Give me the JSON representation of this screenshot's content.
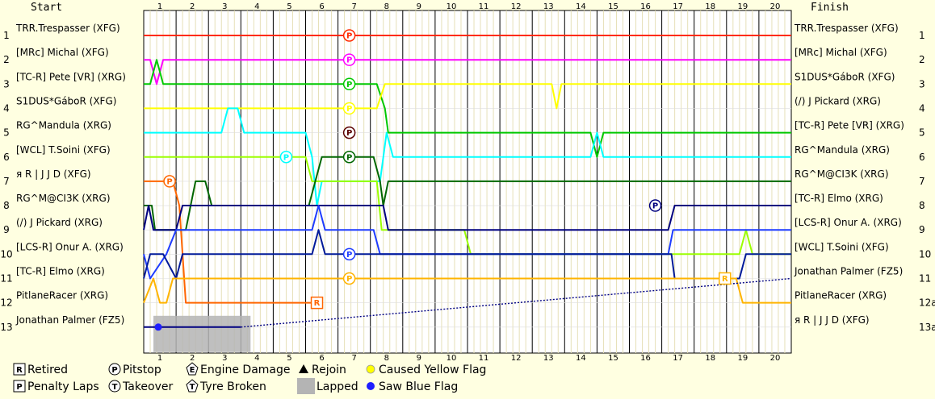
{
  "chart_data": {
    "type": "line",
    "header": {
      "start": "Start",
      "finish": "Finish"
    },
    "laps_top": [
      "1",
      "2",
      "3",
      "4",
      "5",
      "6",
      "7",
      "8",
      "9",
      "10",
      "11",
      "12",
      "13",
      "14",
      "15",
      "16",
      "17",
      "18",
      "19",
      "20"
    ],
    "laps_bottom": [
      "1",
      "2",
      "3",
      "4",
      "5",
      "6",
      "7",
      "8",
      "9",
      "10",
      "11",
      "12",
      "13",
      "14",
      "15",
      "16",
      "17",
      "18",
      "19",
      "20"
    ],
    "positions_left": [
      "1",
      "2",
      "3",
      "4",
      "5",
      "6",
      "7",
      "8",
      "9",
      "10",
      "11",
      "12",
      "13"
    ],
    "positions_right": [
      "1",
      "2",
      "3",
      "4",
      "5",
      "6",
      "7",
      "8",
      "9",
      "10",
      "11",
      "12a",
      "13a"
    ],
    "start_names": [
      "TRR.Trespasser (XFG)",
      "[MRc] Michal (XFG)",
      "[TC-R] Pete [VR] (XRG)",
      "S1DUS*GáboR (XFG)",
      "RG^Mandula (XRG)",
      "[WCL] T.Soini (XFG)",
      "я R | J J D (XFG)",
      "RG^M@CI3K (XRG)",
      "(/) J Pickard (XRG)",
      "[LCS-R] Onur A. (XRG)",
      "[TC-R] Elmo (XRG)",
      "PitlaneRacer (XRG)",
      "Jonathan Palmer (FZ5)"
    ],
    "finish_names": [
      "TRR.Trespasser (XFG)",
      "[MRc] Michal (XFG)",
      "S1DUS*GáboR (XFG)",
      "(/) J Pickard (XRG)",
      "[TC-R] Pete [VR] (XRG)",
      "RG^Mandula (XRG)",
      "RG^M@CI3K (XRG)",
      "[TC-R] Elmo (XRG)",
      "[LCS-R] Onur A. (XRG)",
      "[WCL] T.Soini (XFG)",
      "Jonathan Palmer (FZ5)",
      "PitlaneRacer (XRG)",
      "я R | J J D (XFG)"
    ],
    "series": [
      {
        "color": "#ff2a00",
        "points": [
          [
            0,
            1
          ],
          [
            20,
            1
          ]
        ]
      },
      {
        "color": "#ff00ff",
        "points": [
          [
            0,
            2
          ],
          [
            0.2,
            2
          ],
          [
            0.4,
            3
          ],
          [
            0.6,
            2
          ],
          [
            20,
            2
          ]
        ]
      },
      {
        "color": "#00c800",
        "points": [
          [
            0,
            3
          ],
          [
            0.2,
            3
          ],
          [
            0.4,
            2
          ],
          [
            0.6,
            3
          ],
          [
            7.2,
            3
          ],
          [
            7.45,
            4
          ],
          [
            7.55,
            5
          ],
          [
            13.8,
            5
          ],
          [
            14.0,
            6
          ],
          [
            14.2,
            5
          ],
          [
            20,
            5
          ]
        ]
      },
      {
        "color": "#ffff00",
        "points": [
          [
            0,
            4
          ],
          [
            7.2,
            4
          ],
          [
            7.45,
            3
          ],
          [
            12.6,
            3
          ],
          [
            12.75,
            4
          ],
          [
            12.9,
            3
          ],
          [
            14.9,
            3
          ],
          [
            15.1,
            3
          ],
          [
            20,
            3
          ]
        ]
      },
      {
        "color": "#00ffff",
        "points": [
          [
            0,
            5
          ],
          [
            2.4,
            5
          ],
          [
            2.6,
            4
          ],
          [
            2.9,
            4
          ],
          [
            3.1,
            5
          ],
          [
            5.0,
            5
          ],
          [
            5.2,
            6
          ],
          [
            5.35,
            8
          ],
          [
            5.5,
            7
          ],
          [
            7.3,
            7
          ],
          [
            7.5,
            5
          ],
          [
            7.7,
            6
          ],
          [
            13.8,
            6
          ],
          [
            14.0,
            5
          ],
          [
            14.2,
            6
          ],
          [
            20,
            6
          ]
        ]
      },
      {
        "color": "#9bff00",
        "points": [
          [
            0,
            6
          ],
          [
            5.0,
            6
          ],
          [
            5.2,
            7
          ],
          [
            5.4,
            7
          ],
          [
            5.6,
            7
          ],
          [
            7.2,
            7
          ],
          [
            7.35,
            9
          ],
          [
            7.5,
            9
          ],
          [
            9.9,
            9
          ],
          [
            10.1,
            10
          ],
          [
            10.3,
            10
          ],
          [
            18.4,
            10
          ],
          [
            18.6,
            9
          ],
          [
            18.8,
            10
          ],
          [
            20,
            10
          ]
        ]
      },
      {
        "color": "#ff6600",
        "points": [
          [
            0,
            7
          ],
          [
            0.9,
            7
          ],
          [
            1.1,
            8
          ],
          [
            1.3,
            12
          ],
          [
            5.3,
            12
          ]
        ]
      },
      {
        "color": "#006600",
        "points": [
          [
            0,
            8
          ],
          [
            0.25,
            8
          ],
          [
            0.35,
            9
          ],
          [
            0.5,
            9
          ],
          [
            1.3,
            9
          ],
          [
            1.45,
            8
          ],
          [
            1.6,
            7
          ],
          [
            1.9,
            7
          ],
          [
            2.1,
            8
          ],
          [
            5.1,
            8
          ],
          [
            5.3,
            7
          ],
          [
            5.5,
            6
          ],
          [
            7.1,
            6
          ],
          [
            7.3,
            7
          ],
          [
            7.4,
            8
          ],
          [
            7.55,
            7
          ],
          [
            20,
            7
          ]
        ]
      },
      {
        "color": "#00007f",
        "points": [
          [
            0,
            9
          ],
          [
            0.15,
            8
          ],
          [
            0.3,
            9
          ],
          [
            1.0,
            9
          ],
          [
            1.2,
            8
          ],
          [
            7.2,
            8
          ],
          [
            7.4,
            8
          ],
          [
            7.55,
            9
          ],
          [
            16.2,
            9
          ],
          [
            16.4,
            8
          ],
          [
            20,
            8
          ]
        ]
      },
      {
        "color": "#1e3cff",
        "points": [
          [
            0,
            10
          ],
          [
            0.2,
            11
          ],
          [
            0.7,
            10
          ],
          [
            1.0,
            9
          ],
          [
            1.3,
            9
          ],
          [
            5.2,
            9
          ],
          [
            5.4,
            8
          ],
          [
            5.6,
            9
          ],
          [
            7.1,
            9
          ],
          [
            7.3,
            10
          ],
          [
            16.2,
            10
          ],
          [
            16.35,
            9
          ],
          [
            20,
            9
          ]
        ]
      },
      {
        "color": "#001a99",
        "points": [
          [
            0,
            11
          ],
          [
            0.2,
            10
          ],
          [
            0.6,
            10
          ],
          [
            1.0,
            11
          ],
          [
            1.2,
            10
          ],
          [
            5.2,
            10
          ],
          [
            5.4,
            9
          ],
          [
            5.6,
            10
          ],
          [
            7.1,
            10
          ],
          [
            16.3,
            10
          ],
          [
            16.4,
            11
          ],
          [
            18.4,
            11
          ],
          [
            18.6,
            10
          ],
          [
            20,
            10
          ]
        ]
      },
      {
        "color": "#ffb400",
        "points": [
          [
            0,
            12
          ],
          [
            0.3,
            11
          ],
          [
            0.5,
            12
          ],
          [
            0.7,
            12
          ],
          [
            0.9,
            11
          ],
          [
            1.1,
            11
          ],
          [
            18.3,
            11
          ],
          [
            18.5,
            12
          ],
          [
            20,
            12
          ]
        ]
      },
      {
        "color": "#000080",
        "points": [
          [
            0,
            13
          ],
          [
            3.0,
            13
          ],
          [
            20,
            11
          ]
        ]
      }
    ],
    "markers": [
      {
        "type": "P",
        "lap": 6.35,
        "pos": 1,
        "color": "#ff2a00"
      },
      {
        "type": "P",
        "lap": 6.35,
        "pos": 2,
        "color": "#ff00ff"
      },
      {
        "type": "P",
        "lap": 6.35,
        "pos": 3,
        "color": "#00c800"
      },
      {
        "type": "P",
        "lap": 6.35,
        "pos": 4,
        "color": "#ffff00"
      },
      {
        "type": "P",
        "lap": 6.35,
        "pos": 5,
        "color": "#5a0000"
      },
      {
        "type": "P",
        "lap": 6.35,
        "pos": 6,
        "color": "#006600"
      },
      {
        "type": "P",
        "lap": 6.35,
        "pos": 10,
        "color": "#1e3cff"
      },
      {
        "type": "P",
        "lap": 6.35,
        "pos": 11,
        "color": "#ffb400"
      },
      {
        "type": "P",
        "lap": 4.4,
        "pos": 6,
        "color": "#00ffff"
      },
      {
        "type": "P",
        "lap": 0.8,
        "pos": 7,
        "color": "#ff6600"
      },
      {
        "type": "P",
        "lap": 15.8,
        "pos": 8,
        "color": "#00007f"
      },
      {
        "type": "R",
        "lap": 5.35,
        "pos": 12,
        "color": "#ff6600"
      },
      {
        "type": "R",
        "lap": 17.95,
        "pos": 11,
        "color": "#ffb400"
      }
    ],
    "lapped_span_laps": [
      0.2,
      3.0
    ],
    "blue_flag": {
      "lap": 0.3,
      "pos": 13
    },
    "legend": [
      {
        "symbol": "R",
        "label": "Retired"
      },
      {
        "symbol": "P",
        "label": "Penalty Laps"
      },
      {
        "symbol": "P",
        "label": "Pitstop"
      },
      {
        "symbol": "T",
        "label": "Takeover"
      },
      {
        "symbol": "E",
        "label": "Engine Damage"
      },
      {
        "symbol": "T",
        "label": "Tyre Broken"
      },
      {
        "symbol": "triangle",
        "label": "Rejoin"
      },
      {
        "symbol": "lapped",
        "label": "Lapped"
      },
      {
        "symbol": "yellow-dot",
        "label": "Caused Yellow Flag"
      },
      {
        "symbol": "blue-dot",
        "label": "Saw Blue Flag"
      }
    ]
  }
}
